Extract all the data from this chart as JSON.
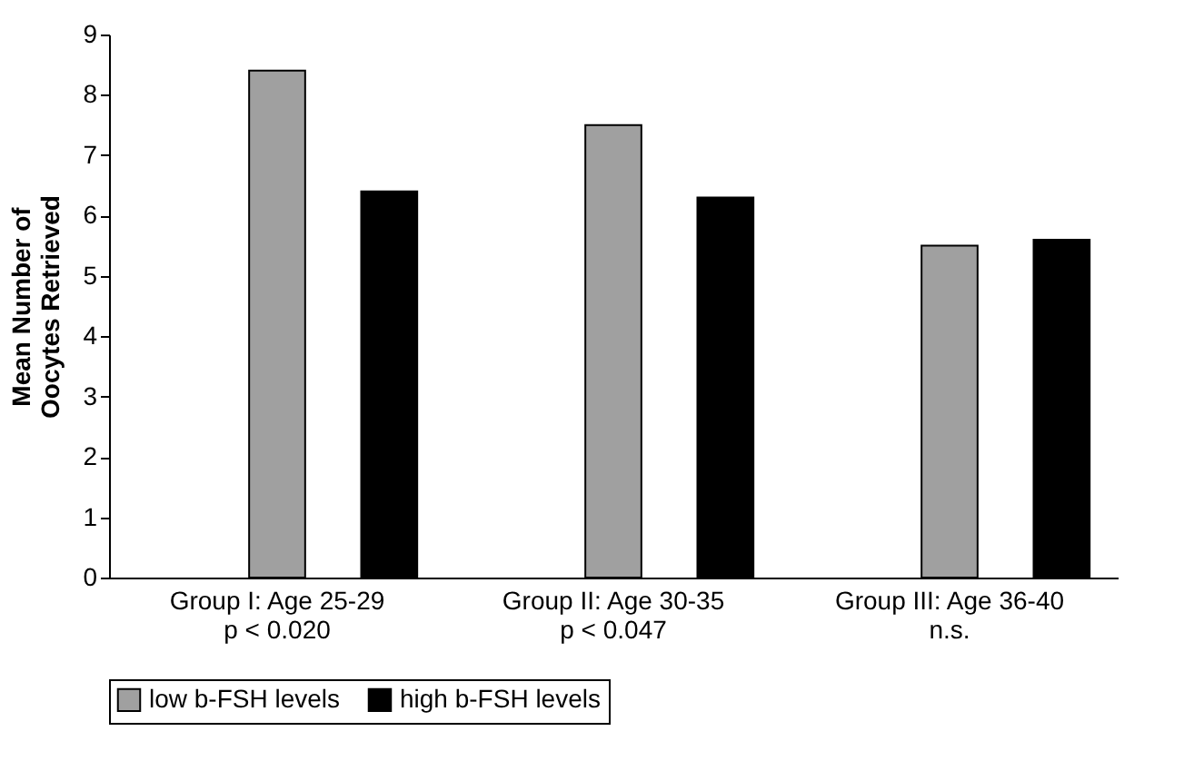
{
  "chart_data": {
    "type": "bar",
    "ylabel": "Mean Number of\nOocytes Retrieved",
    "categories": [
      "Group I: Age 25-29\np < 0.020",
      "Group II: Age 30-35\np < 0.047",
      "Group III: Age 36-40\nn.s."
    ],
    "series": [
      {
        "name": "low b-FSH levels",
        "color": "#a0a0a0",
        "values": [
          8.4,
          7.5,
          5.5
        ]
      },
      {
        "name": "high b-FSH levels",
        "color": "#000000",
        "values": [
          6.4,
          6.3,
          5.6
        ]
      }
    ],
    "ylim": [
      0,
      9
    ],
    "yticks": [
      0,
      1,
      2,
      3,
      4,
      5,
      6,
      7,
      8,
      9
    ],
    "grid": false,
    "legend": "bottom"
  }
}
